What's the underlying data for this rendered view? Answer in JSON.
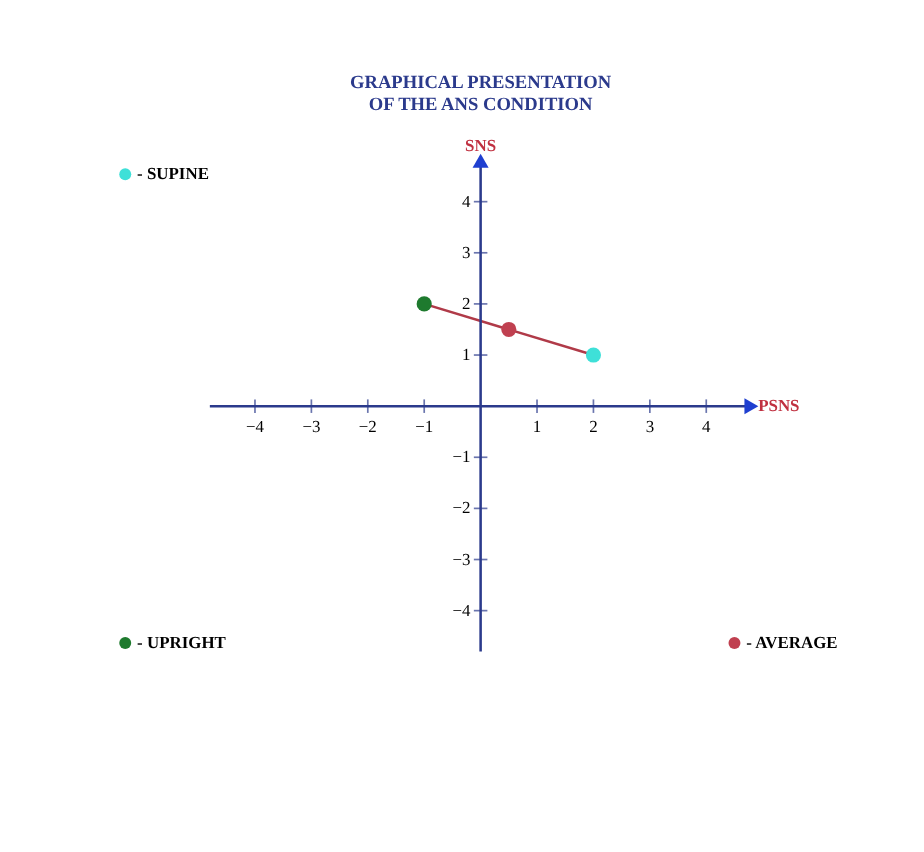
{
  "chart_data": {
    "type": "scatter",
    "title": "GRAPHICAL PRESENTATION\nOF THE ANS CONDITION",
    "xlabel": "PSNS",
    "ylabel": "SNS",
    "xlim": [
      -4.8,
      4.8
    ],
    "ylim": [
      -4.8,
      4.8
    ],
    "xticks": [
      -4,
      -3,
      -2,
      -1,
      1,
      2,
      3,
      4
    ],
    "yticks": [
      -4,
      -3,
      -2,
      -1,
      1,
      2,
      3,
      4
    ],
    "grid": false,
    "legend": "bottom left",
    "series": [
      {
        "type": "line",
        "x": [
          -1,
          2
        ],
        "values": [
          2,
          1
        ],
        "color": "#b03a48"
      },
      {
        "name": "- SUPINE",
        "x": [
          2
        ],
        "values": [
          1
        ],
        "color": "#3ee0d8",
        "marker": "circle"
      },
      {
        "name": "- UPRIGHT",
        "x": [
          -1
        ],
        "values": [
          2
        ],
        "color": "#1e7a2e",
        "marker": "circle"
      },
      {
        "name": "- AVERAGE",
        "x": [
          0.5
        ],
        "values": [
          1.5
        ],
        "color": "#c04050",
        "marker": "circle"
      }
    ]
  }
}
